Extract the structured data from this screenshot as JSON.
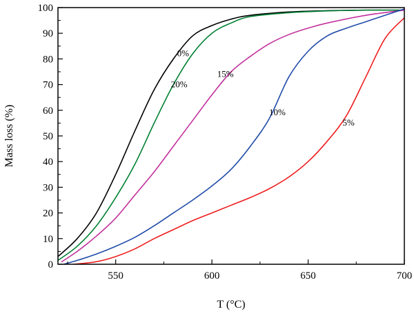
{
  "chart_data": {
    "type": "line",
    "title": "",
    "xlabel": "T (°C)",
    "ylabel": "Mass loss (%)",
    "xlim": [
      520,
      700
    ],
    "ylim": [
      0,
      100
    ],
    "x_ticks": [
      550,
      600,
      650,
      700
    ],
    "y_ticks": [
      0,
      10,
      20,
      30,
      40,
      50,
      60,
      70,
      80,
      90,
      100
    ],
    "grid": false,
    "legend": "none",
    "series": [
      {
        "name": "0%",
        "color": "#000000",
        "label_at": [
          585,
          81
        ],
        "points": [
          [
            520,
            3
          ],
          [
            530,
            10
          ],
          [
            540,
            20
          ],
          [
            550,
            35
          ],
          [
            560,
            52
          ],
          [
            570,
            68
          ],
          [
            580,
            80
          ],
          [
            590,
            89
          ],
          [
            600,
            93
          ],
          [
            610,
            95.5
          ],
          [
            620,
            97
          ],
          [
            640,
            98.3
          ],
          [
            660,
            98.8
          ],
          [
            680,
            99
          ],
          [
            700,
            99
          ]
        ]
      },
      {
        "name": "20%",
        "color": "#008033",
        "label_at": [
          583,
          69
        ],
        "points": [
          [
            520,
            1.5
          ],
          [
            530,
            7
          ],
          [
            540,
            15
          ],
          [
            550,
            26
          ],
          [
            560,
            39
          ],
          [
            570,
            55
          ],
          [
            580,
            70
          ],
          [
            590,
            82
          ],
          [
            600,
            90
          ],
          [
            610,
            94
          ],
          [
            620,
            96.5
          ],
          [
            640,
            98
          ],
          [
            660,
            98.7
          ],
          [
            680,
            99
          ],
          [
            700,
            99
          ]
        ]
      },
      {
        "name": "15%",
        "color": "#c2309c",
        "label_at": [
          607,
          73
        ],
        "points": [
          [
            522,
            1
          ],
          [
            530,
            5
          ],
          [
            540,
            11
          ],
          [
            550,
            18
          ],
          [
            560,
            27
          ],
          [
            570,
            36
          ],
          [
            580,
            46
          ],
          [
            590,
            56
          ],
          [
            600,
            66
          ],
          [
            610,
            75
          ],
          [
            620,
            81
          ],
          [
            630,
            86
          ],
          [
            640,
            89.5
          ],
          [
            650,
            92
          ],
          [
            660,
            94
          ],
          [
            680,
            97
          ],
          [
            700,
            99
          ]
        ]
      },
      {
        "name": "10%",
        "color": "#1f4aa8",
        "label_at": [
          634,
          58
        ],
        "points": [
          [
            523,
            0
          ],
          [
            530,
            1.5
          ],
          [
            540,
            4
          ],
          [
            550,
            7
          ],
          [
            560,
            10.5
          ],
          [
            570,
            15
          ],
          [
            580,
            20
          ],
          [
            590,
            25
          ],
          [
            600,
            30.5
          ],
          [
            610,
            37
          ],
          [
            620,
            46
          ],
          [
            630,
            57
          ],
          [
            640,
            73
          ],
          [
            650,
            83
          ],
          [
            660,
            89
          ],
          [
            670,
            92
          ],
          [
            680,
            94.5
          ],
          [
            690,
            97
          ],
          [
            700,
            99.5
          ]
        ]
      },
      {
        "name": "5%",
        "color": "#ee1c1c",
        "label_at": [
          671,
          54
        ],
        "points": [
          [
            528,
            0
          ],
          [
            540,
            1
          ],
          [
            550,
            3
          ],
          [
            560,
            6
          ],
          [
            570,
            10
          ],
          [
            580,
            13.5
          ],
          [
            590,
            17
          ],
          [
            600,
            20
          ],
          [
            610,
            23
          ],
          [
            620,
            26
          ],
          [
            630,
            29.5
          ],
          [
            640,
            34
          ],
          [
            650,
            40
          ],
          [
            660,
            48
          ],
          [
            670,
            58
          ],
          [
            680,
            73
          ],
          [
            690,
            88
          ],
          [
            700,
            96
          ]
        ]
      }
    ]
  }
}
